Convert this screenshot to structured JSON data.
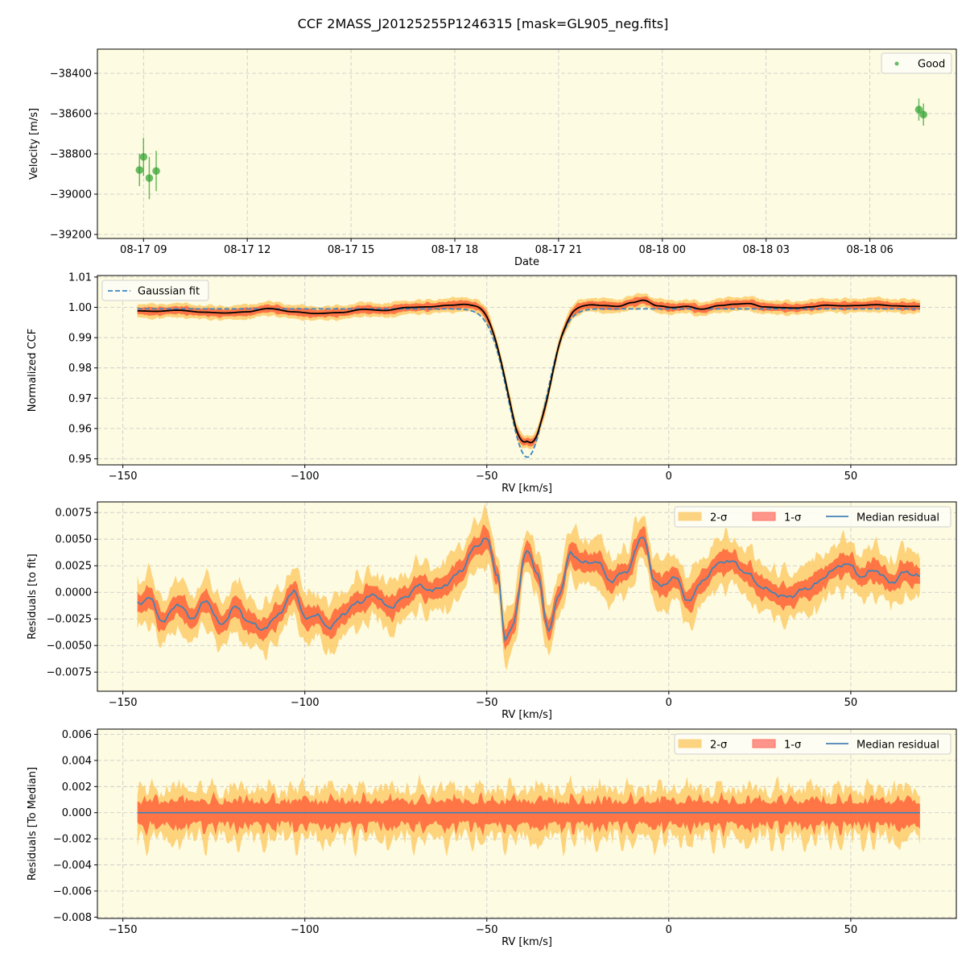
{
  "figure": {
    "title": "CCF 2MASS_J20125255P1246315 [mask=GL905_neg.fits]",
    "colors": {
      "plot_bg": "#fdfbe1",
      "good": "#2ca02c",
      "fit": "#3b86c2",
      "sigma1": "#ff5533",
      "sigma2": "#fcc55a",
      "median": "#4682b4",
      "grid": "#c8c8c8"
    }
  },
  "chart_data": [
    {
      "type": "scatter",
      "xlabel": "Date",
      "ylabel": "Velocity [m/s]",
      "xlim": [
        "2024-08-17 07:40",
        "2024-08-18 08:30"
      ],
      "ylim": [
        -39220,
        -38280
      ],
      "x_ticks": [
        "2024-08-17 09:00",
        "2024-08-17 12:00",
        "2024-08-17 15:00",
        "2024-08-17 18:00",
        "2024-08-17 21:00",
        "2024-08-18 00:00",
        "2024-08-18 03:00",
        "2024-08-18 06:00"
      ],
      "x_tick_labels": [
        "08-17 09",
        "08-17 12",
        "08-17 15",
        "08-17 18",
        "08-17 21",
        "08-18 00",
        "08-18 03",
        "08-18 06"
      ],
      "y_ticks": [
        -38400,
        -38600,
        -38800,
        -39000,
        -39200
      ],
      "y_tick_labels": [
        "−38400",
        "−38600",
        "−38800",
        "−39000",
        "−39200"
      ],
      "legend": {
        "position": "top-right",
        "entries": [
          "Good"
        ]
      },
      "grid": true,
      "series": [
        {
          "name": "Good",
          "points": [
            {
              "x": "2024-08-17 08:53",
              "y": -38880,
              "err": 80
            },
            {
              "x": "2024-08-17 09:00",
              "y": -38815,
              "err": 95
            },
            {
              "x": "2024-08-17 09:10",
              "y": -38920,
              "err": 105
            },
            {
              "x": "2024-08-17 09:22",
              "y": -38885,
              "err": 100
            },
            {
              "x": "2024-08-18 07:25",
              "y": -38580,
              "err": 55
            },
            {
              "x": "2024-08-18 07:33",
              "y": -38605,
              "err": 55
            }
          ]
        }
      ]
    },
    {
      "type": "line",
      "xlabel": "RV [km/s]",
      "ylabel": "Normalized CCF",
      "xlim": [
        -157,
        79
      ],
      "ylim": [
        0.948,
        1.0105
      ],
      "x_ticks": [
        -150,
        -100,
        -50,
        0,
        50
      ],
      "x_tick_labels": [
        "−150",
        "−100",
        "−50",
        "0",
        "50"
      ],
      "y_ticks": [
        0.95,
        0.96,
        0.97,
        0.98,
        0.99,
        1.0,
        1.01
      ],
      "y_tick_labels": [
        "0.95",
        "0.96",
        "0.97",
        "0.98",
        "0.99",
        "1.00",
        "1.01"
      ],
      "legend": {
        "position": "top-left",
        "entries": [
          "Gaussian fit"
        ]
      },
      "grid": true,
      "rv_range": [
        -146,
        69
      ],
      "gaussian_fit": {
        "baseline": 0.9995,
        "depth": 0.049,
        "center": -38.9,
        "sigma": 5.2
      },
      "ccf_offsets": [
        [
          -146,
          -0.0012
        ],
        [
          -141,
          -0.0015
        ],
        [
          -135,
          -0.0008
        ],
        [
          -128,
          -0.002
        ],
        [
          -122,
          -0.0025
        ],
        [
          -116,
          -0.0018
        ],
        [
          -110,
          0.0002
        ],
        [
          -103,
          -0.0018
        ],
        [
          -97,
          -0.0028
        ],
        [
          -90,
          -0.0022
        ],
        [
          -84,
          -0.0003
        ],
        [
          -78,
          -0.001
        ],
        [
          -72,
          0.0008
        ],
        [
          -66,
          0.0012
        ],
        [
          -60,
          0.0022
        ],
        [
          -55,
          0.0032
        ],
        [
          -51,
          0.0045
        ],
        [
          -46,
          0.0025
        ],
        [
          -42,
          0.0028
        ],
        [
          -39,
          0.0035
        ],
        [
          -36,
          0.0015
        ],
        [
          -33,
          -0.003
        ],
        [
          -29,
          0.0008
        ],
        [
          -26,
          0.003
        ],
        [
          -22,
          0.0028
        ],
        [
          -18,
          0.002
        ],
        [
          -14,
          0.0015
        ],
        [
          -10,
          0.0038
        ],
        [
          -7,
          0.0052
        ],
        [
          -3,
          0.0018
        ],
        [
          1,
          0.0008
        ],
        [
          5,
          0.0015
        ],
        [
          9,
          -0.0002
        ],
        [
          14,
          0.002
        ],
        [
          18,
          0.0028
        ],
        [
          22,
          0.0032
        ],
        [
          26,
          0.0012
        ],
        [
          30,
          0.0008
        ],
        [
          35,
          0.0005
        ],
        [
          39,
          0.0012
        ],
        [
          43,
          0.0022
        ],
        [
          48,
          0.0018
        ],
        [
          52,
          0.002
        ],
        [
          57,
          0.0025
        ],
        [
          62,
          0.0018
        ],
        [
          66,
          0.0015
        ],
        [
          69,
          0.0015
        ]
      ]
    },
    {
      "type": "area",
      "xlabel": "RV [km/s]",
      "ylabel": "Residuals [to fit]",
      "xlim": [
        -157,
        79
      ],
      "ylim": [
        -0.0093,
        0.0085
      ],
      "x_ticks": [
        -150,
        -100,
        -50,
        0,
        50
      ],
      "x_tick_labels": [
        "−150",
        "−100",
        "−50",
        "0",
        "50"
      ],
      "y_ticks": [
        0.0075,
        0.005,
        0.0025,
        0.0,
        -0.0025,
        -0.005,
        -0.0075
      ],
      "y_tick_labels": [
        "0.0075",
        "0.0050",
        "0.0025",
        "0.0000",
        "−0.0025",
        "−0.0050",
        "−0.0075"
      ],
      "legend": {
        "position": "top-right",
        "entries": [
          "2-σ",
          "1-σ",
          "Median residual"
        ]
      },
      "grid": true,
      "rv_range": [
        -146,
        69
      ],
      "median_residual": [
        [
          -146,
          -0.001
        ],
        [
          -143,
          -0.0005
        ],
        [
          -139,
          -0.0028
        ],
        [
          -135,
          -0.001
        ],
        [
          -131,
          -0.0025
        ],
        [
          -127,
          -0.0008
        ],
        [
          -123,
          -0.003
        ],
        [
          -119,
          -0.0015
        ],
        [
          -115,
          -0.0028
        ],
        [
          -111,
          -0.0035
        ],
        [
          -107,
          -0.002
        ],
        [
          -103,
          0.0003
        ],
        [
          -100,
          -0.0025
        ],
        [
          -97,
          -0.0022
        ],
        [
          -93,
          -0.0032
        ],
        [
          -89,
          -0.002
        ],
        [
          -85,
          -0.0008
        ],
        [
          -81,
          -0.0002
        ],
        [
          -77,
          -0.0015
        ],
        [
          -73,
          -0.0005
        ],
        [
          -69,
          0.0005
        ],
        [
          -65,
          0.0002
        ],
        [
          -61,
          0.0008
        ],
        [
          -57,
          0.002
        ],
        [
          -53,
          0.0045
        ],
        [
          -50,
          0.005
        ],
        [
          -47,
          0.0015
        ],
        [
          -45,
          -0.0045
        ],
        [
          -43,
          -0.003
        ],
        [
          -39,
          0.004
        ],
        [
          -36,
          0.0015
        ],
        [
          -33,
          -0.0035
        ],
        [
          -30,
          0.0
        ],
        [
          -27,
          0.0035
        ],
        [
          -23,
          0.0028
        ],
        [
          -20,
          0.003
        ],
        [
          -16,
          0.001
        ],
        [
          -12,
          0.002
        ],
        [
          -7,
          0.0052
        ],
        [
          -4,
          0.001
        ],
        [
          -1,
          0.0008
        ],
        [
          2,
          0.0015
        ],
        [
          5,
          -0.001
        ],
        [
          9,
          0.001
        ],
        [
          13,
          0.0025
        ],
        [
          17,
          0.003
        ],
        [
          21,
          0.002
        ],
        [
          25,
          0.0005
        ],
        [
          29,
          0.0
        ],
        [
          33,
          -0.0005
        ],
        [
          37,
          0.0002
        ],
        [
          41,
          0.001
        ],
        [
          45,
          0.002
        ],
        [
          49,
          0.0028
        ],
        [
          53,
          0.0015
        ],
        [
          57,
          0.002
        ],
        [
          61,
          0.001
        ],
        [
          65,
          0.0018
        ],
        [
          69,
          0.0015
        ]
      ]
    },
    {
      "type": "area",
      "xlabel": "RV [km/s]",
      "ylabel": "Residuals [To Median]",
      "xlim": [
        -157,
        79
      ],
      "ylim": [
        -0.0081,
        0.0064
      ],
      "x_ticks": [
        -150,
        -100,
        -50,
        0,
        50
      ],
      "x_tick_labels": [
        "−150",
        "−100",
        "−50",
        "0",
        "50"
      ],
      "y_ticks": [
        0.006,
        0.004,
        0.002,
        0.0,
        -0.002,
        -0.004,
        -0.006,
        -0.008
      ],
      "y_tick_labels": [
        "0.006",
        "0.004",
        "0.002",
        "0.000",
        "−0.002",
        "−0.004",
        "−0.006",
        "−0.008"
      ],
      "legend": {
        "position": "top-right",
        "entries": [
          "2-σ",
          "1-σ",
          "Median residual"
        ]
      },
      "grid": true,
      "rv_range": [
        -146,
        69
      ],
      "median_residual_value": 0.0
    }
  ]
}
